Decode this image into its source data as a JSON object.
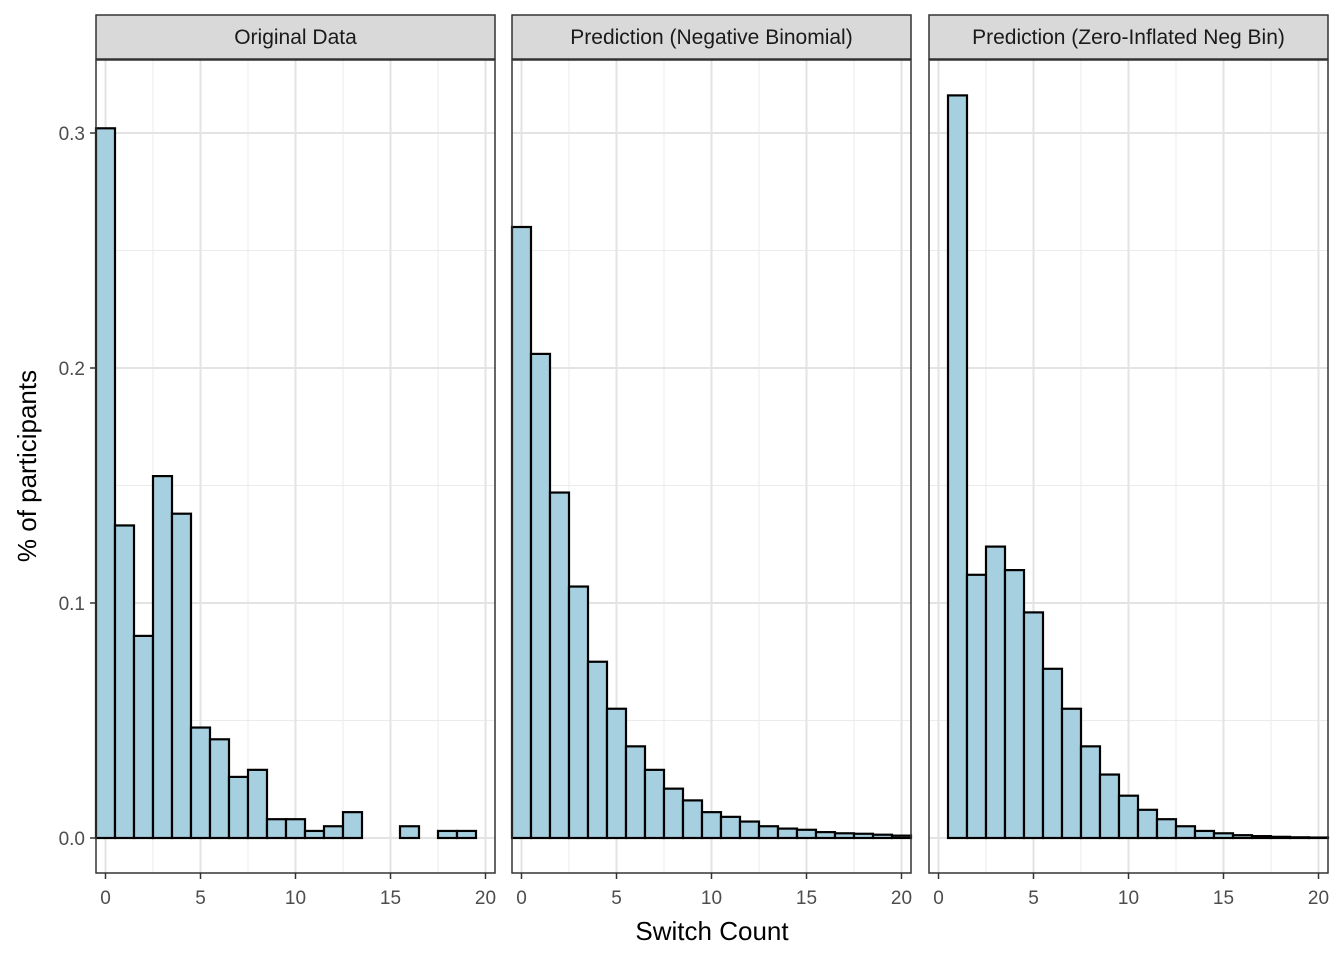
{
  "chart_data": {
    "type": "bar",
    "title": "",
    "xlabel": "Switch Count",
    "ylabel": "% of participants",
    "xlim": [
      -0.5,
      20.5
    ],
    "ylim": [
      0,
      0.32
    ],
    "x_ticks": [
      0,
      5,
      10,
      15,
      20
    ],
    "x_tick_labels": [
      "0",
      "5",
      "10",
      "15",
      "20"
    ],
    "y_ticks": [
      0.0,
      0.1,
      0.2,
      0.3
    ],
    "y_tick_labels": [
      "0.0",
      "0.1",
      "0.2",
      "0.3"
    ],
    "grid": true,
    "bar_fill": "#a6d0e0",
    "bar_stroke": "#000000",
    "strip_fill": "#d9d9d9",
    "panels": [
      {
        "name": "Original Data",
        "x": [
          0,
          1,
          2,
          3,
          4,
          5,
          6,
          7,
          8,
          9,
          10,
          11,
          12,
          13,
          14,
          15,
          16,
          17,
          18,
          19,
          20
        ],
        "values": [
          0.302,
          0.133,
          0.086,
          0.154,
          0.138,
          0.047,
          0.042,
          0.026,
          0.029,
          0.008,
          0.008,
          0.003,
          0.005,
          0.011,
          0.0,
          0.0,
          0.005,
          0.0,
          0.003,
          0.003,
          0.0
        ]
      },
      {
        "name": "Prediction (Negative Binomial)",
        "x": [
          0,
          1,
          2,
          3,
          4,
          5,
          6,
          7,
          8,
          9,
          10,
          11,
          12,
          13,
          14,
          15,
          16,
          17,
          18,
          19,
          20
        ],
        "values": [
          0.26,
          0.206,
          0.147,
          0.107,
          0.075,
          0.055,
          0.039,
          0.029,
          0.021,
          0.016,
          0.011,
          0.009,
          0.007,
          0.005,
          0.004,
          0.0035,
          0.0025,
          0.002,
          0.0018,
          0.0014,
          0.001
        ]
      },
      {
        "name": "Prediction (Zero-Inflated Neg Bin)",
        "x": [
          0,
          1,
          2,
          3,
          4,
          5,
          6,
          7,
          8,
          9,
          10,
          11,
          12,
          13,
          14,
          15,
          16,
          17,
          18,
          19,
          20
        ],
        "values": [
          0.0,
          0.316,
          0.112,
          0.124,
          0.114,
          0.096,
          0.072,
          0.055,
          0.039,
          0.027,
          0.018,
          0.012,
          0.008,
          0.005,
          0.003,
          0.002,
          0.0012,
          0.0008,
          0.0005,
          0.0003,
          0.0002
        ]
      }
    ]
  }
}
